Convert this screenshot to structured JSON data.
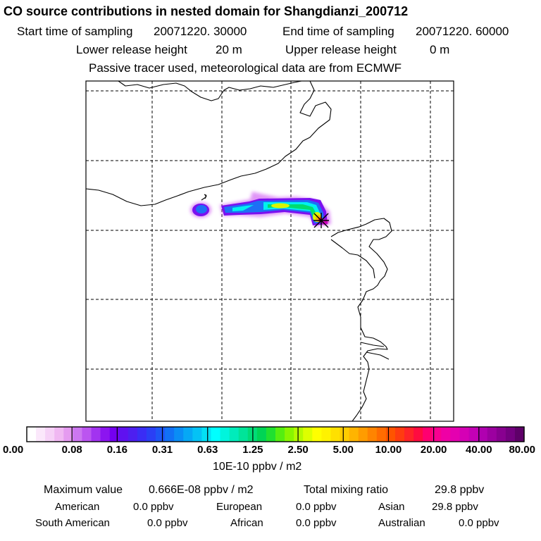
{
  "header": {
    "title": "CO  source contributions in nested domain for Shangdianzi_200712",
    "start_label": "Start time of sampling",
    "start_value": "20071220. 30000",
    "end_label": "End time of sampling",
    "end_value": "20071220. 60000",
    "lower_label": "Lower release height",
    "lower_value": "20 m",
    "upper_label": "Upper release height",
    "upper_value": "0 m",
    "note": "Passive tracer used, meteorological data are from ECMWF"
  },
  "colorbar": {
    "labels": [
      "0.00",
      "0.08",
      "0.16",
      "0.31",
      "0.63",
      "1.25",
      "2.50",
      "5.00",
      "10.00",
      "20.00",
      "40.00",
      "80.00"
    ],
    "unit": "10E-10 ppbv / m2",
    "colors": [
      "#ffffff",
      "#fbe8fb",
      "#f6d2f7",
      "#f0b8f2",
      "#e59bf0",
      "#cc77f0",
      "#bb55f0",
      "#a233f0",
      "#8c15f0",
      "#7400f0",
      "#5f11f0",
      "#4d1ff0",
      "#3a2df5",
      "#2a3ff5",
      "#1d55f5",
      "#1171f5",
      "#0a8df5",
      "#06a8f5",
      "#04c2f5",
      "#03e0f5",
      "#00ffff",
      "#00f5dd",
      "#00ecbb",
      "#00e499",
      "#00dc77",
      "#00d455",
      "#20e030",
      "#55ee10",
      "#88f500",
      "#b5fa00",
      "#ddff00",
      "#ffff00",
      "#fff200",
      "#ffe000",
      "#ffcc00",
      "#ffb400",
      "#ff9c00",
      "#ff8400",
      "#ff6c00",
      "#ff5400",
      "#ff3c10",
      "#ff2428",
      "#ff0c40",
      "#ff0070",
      "#f80090",
      "#ef00a5",
      "#e400b0",
      "#d500b5",
      "#c400b5",
      "#b000b0",
      "#9c00a0",
      "#880090",
      "#740080",
      "#5e0068"
    ]
  },
  "stats": {
    "max_label": "Maximum value",
    "max_value": "0.666E-08 ppbv / m2",
    "total_label": "Total mixing ratio",
    "total_value": "29.8 ppbv",
    "american_label": "American",
    "american_value": "0.0 ppbv",
    "european_label": "European",
    "european_value": "0.0 ppbv",
    "asian_label": "Asian",
    "asian_value": "29.8 ppbv",
    "south_american_label": "South American",
    "south_american_value": "0.0 ppbv",
    "african_label": "African",
    "african_value": "0.0 ppbv",
    "australian_label": "Australian",
    "australian_value": "0.0 ppbv"
  }
}
